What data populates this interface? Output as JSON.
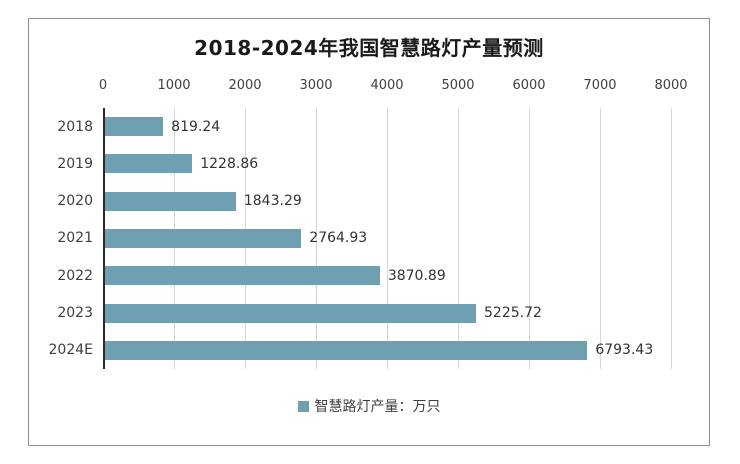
{
  "chart_data": {
    "type": "bar",
    "orientation": "horizontal",
    "title": "2018-2024年我国智慧路灯产量预测",
    "categories": [
      "2018",
      "2019",
      "2020",
      "2021",
      "2022",
      "2023",
      "2024E"
    ],
    "values": [
      819.24,
      1228.86,
      1843.29,
      2764.93,
      3870.89,
      5225.72,
      6793.43
    ],
    "value_labels": [
      "819.24",
      "1228.86",
      "1843.29",
      "2764.93",
      "3870.89",
      "5225.72",
      "6793.43"
    ],
    "xlim": [
      0,
      8000
    ],
    "xticks": [
      "0",
      "1000",
      "2000",
      "3000",
      "4000",
      "5000",
      "6000",
      "7000",
      "8000"
    ],
    "grid": "vertical",
    "legend": {
      "label": "智慧路灯产量：万只",
      "position": "bottom"
    }
  },
  "colors": {
    "bar": "#6fa0b2",
    "grid": "#d6d6d6",
    "axis": "#2b2b2b",
    "text": "#404040",
    "frame_border": "#8c8c8c"
  }
}
